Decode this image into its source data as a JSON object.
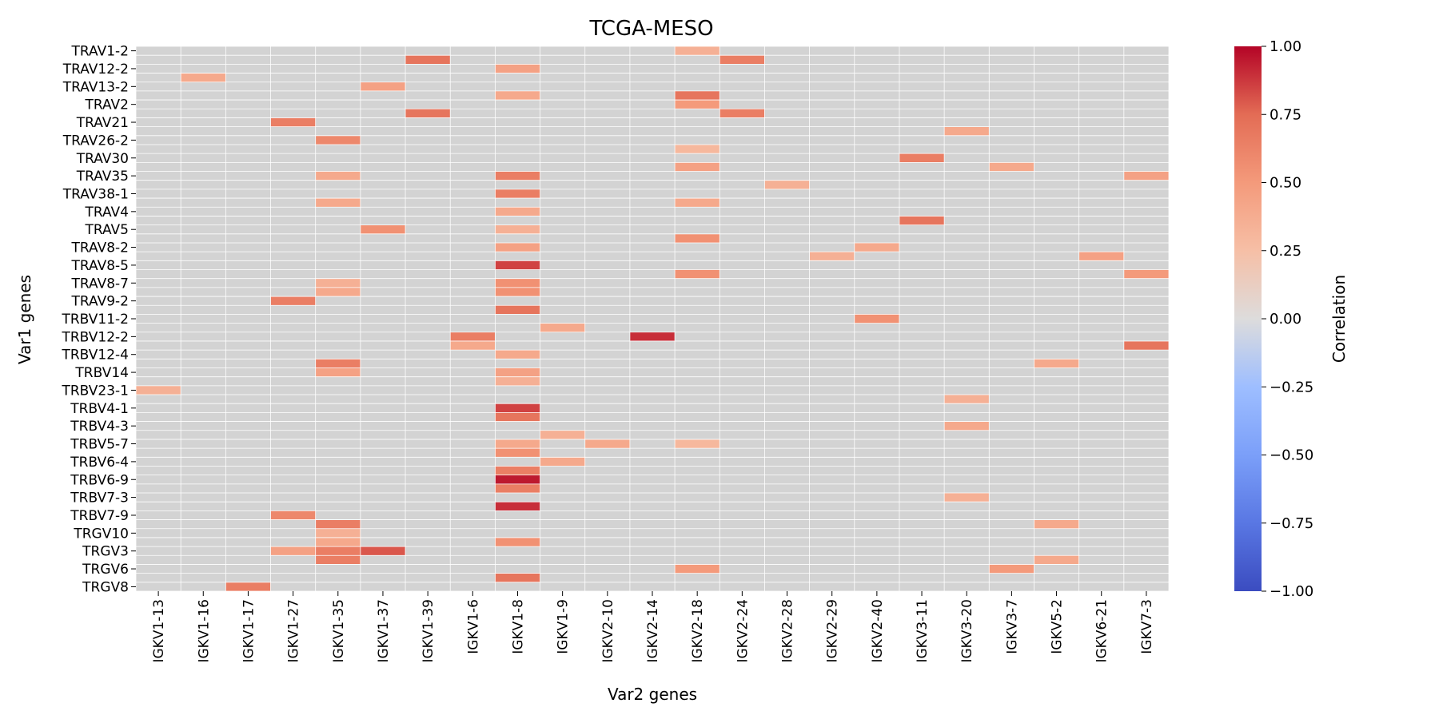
{
  "chart_data": {
    "type": "heatmap",
    "title": "TCGA-MESO",
    "xlabel": "Var2 genes",
    "ylabel": "Var1 genes",
    "x_categories": [
      "IGKV1-13",
      "IGKV1-16",
      "IGKV1-17",
      "IGKV1-27",
      "IGKV1-35",
      "IGKV1-37",
      "IGKV1-39",
      "IGKV1-6",
      "IGKV1-8",
      "IGKV1-9",
      "IGKV2-10",
      "IGKV2-14",
      "IGKV2-18",
      "IGKV2-24",
      "IGKV2-28",
      "IGKV2-29",
      "IGKV2-40",
      "IGKV3-11",
      "IGKV3-20",
      "IGKV3-7",
      "IGKV5-2",
      "IGKV6-21",
      "IGKV7-3"
    ],
    "y_tick_labels": [
      "TRAV1-2",
      "TRAV12-2",
      "TRAV13-2",
      "TRAV2",
      "TRAV21",
      "TRAV26-2",
      "TRAV30",
      "TRAV35",
      "TRAV38-1",
      "TRAV4",
      "TRAV5",
      "TRAV8-2",
      "TRAV8-5",
      "TRAV8-7",
      "TRAV9-2",
      "TRBV11-2",
      "TRBV12-2",
      "TRBV12-4",
      "TRBV14",
      "TRBV23-1",
      "TRBV4-1",
      "TRBV4-3",
      "TRBV5-7",
      "TRBV6-4",
      "TRBV6-9",
      "TRBV7-3",
      "TRBV7-9",
      "TRGV10",
      "TRGV3",
      "TRGV6",
      "TRGV8"
    ],
    "row_count": 61,
    "missing_color": "#d3d3d3",
    "colormap": "coolwarm",
    "cells": [
      {
        "row": 0,
        "col": 12,
        "value": 0.35
      },
      {
        "row": 1,
        "col": 6,
        "value": 0.7
      },
      {
        "row": 1,
        "col": 13,
        "value": 0.65
      },
      {
        "row": 2,
        "col": 8,
        "value": 0.45
      },
      {
        "row": 3,
        "col": 1,
        "value": 0.4
      },
      {
        "row": 4,
        "col": 5,
        "value": 0.45
      },
      {
        "row": 5,
        "col": 8,
        "value": 0.4
      },
      {
        "row": 5,
        "col": 12,
        "value": 0.7
      },
      {
        "row": 6,
        "col": 12,
        "value": 0.5
      },
      {
        "row": 7,
        "col": 6,
        "value": 0.7
      },
      {
        "row": 7,
        "col": 13,
        "value": 0.65
      },
      {
        "row": 8,
        "col": 3,
        "value": 0.65
      },
      {
        "row": 9,
        "col": 18,
        "value": 0.4
      },
      {
        "row": 10,
        "col": 4,
        "value": 0.6
      },
      {
        "row": 11,
        "col": 12,
        "value": 0.3
      },
      {
        "row": 12,
        "col": 17,
        "value": 0.65
      },
      {
        "row": 13,
        "col": 12,
        "value": 0.45
      },
      {
        "row": 13,
        "col": 19,
        "value": 0.4
      },
      {
        "row": 14,
        "col": 4,
        "value": 0.4
      },
      {
        "row": 14,
        "col": 8,
        "value": 0.65
      },
      {
        "row": 14,
        "col": 22,
        "value": 0.45
      },
      {
        "row": 15,
        "col": 14,
        "value": 0.35
      },
      {
        "row": 16,
        "col": 8,
        "value": 0.65
      },
      {
        "row": 17,
        "col": 4,
        "value": 0.4
      },
      {
        "row": 17,
        "col": 12,
        "value": 0.4
      },
      {
        "row": 18,
        "col": 8,
        "value": 0.4
      },
      {
        "row": 19,
        "col": 17,
        "value": 0.7
      },
      {
        "row": 20,
        "col": 5,
        "value": 0.55
      },
      {
        "row": 20,
        "col": 8,
        "value": 0.35
      },
      {
        "row": 21,
        "col": 12,
        "value": 0.55
      },
      {
        "row": 22,
        "col": 8,
        "value": 0.45
      },
      {
        "row": 22,
        "col": 16,
        "value": 0.4
      },
      {
        "row": 23,
        "col": 15,
        "value": 0.35
      },
      {
        "row": 23,
        "col": 21,
        "value": 0.45
      },
      {
        "row": 24,
        "col": 8,
        "value": 0.85
      },
      {
        "row": 25,
        "col": 12,
        "value": 0.55
      },
      {
        "row": 25,
        "col": 22,
        "value": 0.5
      },
      {
        "row": 26,
        "col": 4,
        "value": 0.35
      },
      {
        "row": 26,
        "col": 8,
        "value": 0.55
      },
      {
        "row": 27,
        "col": 4,
        "value": 0.4
      },
      {
        "row": 27,
        "col": 8,
        "value": 0.55
      },
      {
        "row": 28,
        "col": 3,
        "value": 0.65
      },
      {
        "row": 29,
        "col": 8,
        "value": 0.7
      },
      {
        "row": 30,
        "col": 16,
        "value": 0.55
      },
      {
        "row": 31,
        "col": 9,
        "value": 0.4
      },
      {
        "row": 32,
        "col": 7,
        "value": 0.65
      },
      {
        "row": 32,
        "col": 11,
        "value": 0.9
      },
      {
        "row": 33,
        "col": 7,
        "value": 0.4
      },
      {
        "row": 33,
        "col": 22,
        "value": 0.7
      },
      {
        "row": 34,
        "col": 8,
        "value": 0.4
      },
      {
        "row": 35,
        "col": 4,
        "value": 0.65
      },
      {
        "row": 35,
        "col": 20,
        "value": 0.4
      },
      {
        "row": 36,
        "col": 4,
        "value": 0.45
      },
      {
        "row": 36,
        "col": 8,
        "value": 0.45
      },
      {
        "row": 37,
        "col": 8,
        "value": 0.35
      },
      {
        "row": 38,
        "col": 0,
        "value": 0.35
      },
      {
        "row": 39,
        "col": 18,
        "value": 0.35
      },
      {
        "row": 40,
        "col": 8,
        "value": 0.85
      },
      {
        "row": 41,
        "col": 8,
        "value": 0.7
      },
      {
        "row": 42,
        "col": 18,
        "value": 0.4
      },
      {
        "row": 43,
        "col": 9,
        "value": 0.35
      },
      {
        "row": 44,
        "col": 8,
        "value": 0.4
      },
      {
        "row": 44,
        "col": 10,
        "value": 0.4
      },
      {
        "row": 44,
        "col": 12,
        "value": 0.3
      },
      {
        "row": 45,
        "col": 8,
        "value": 0.55
      },
      {
        "row": 46,
        "col": 9,
        "value": 0.4
      },
      {
        "row": 47,
        "col": 8,
        "value": 0.65
      },
      {
        "row": 48,
        "col": 8,
        "value": 0.95
      },
      {
        "row": 49,
        "col": 8,
        "value": 0.65
      },
      {
        "row": 50,
        "col": 18,
        "value": 0.35
      },
      {
        "row": 51,
        "col": 8,
        "value": 0.9
      },
      {
        "row": 52,
        "col": 3,
        "value": 0.6
      },
      {
        "row": 53,
        "col": 4,
        "value": 0.65
      },
      {
        "row": 53,
        "col": 20,
        "value": 0.4
      },
      {
        "row": 54,
        "col": 4,
        "value": 0.35
      },
      {
        "row": 55,
        "col": 4,
        "value": 0.4
      },
      {
        "row": 55,
        "col": 8,
        "value": 0.55
      },
      {
        "row": 56,
        "col": 3,
        "value": 0.45
      },
      {
        "row": 56,
        "col": 4,
        "value": 0.65
      },
      {
        "row": 56,
        "col": 5,
        "value": 0.8
      },
      {
        "row": 57,
        "col": 4,
        "value": 0.65
      },
      {
        "row": 57,
        "col": 20,
        "value": 0.4
      },
      {
        "row": 58,
        "col": 12,
        "value": 0.5
      },
      {
        "row": 58,
        "col": 19,
        "value": 0.5
      },
      {
        "row": 59,
        "col": 8,
        "value": 0.7
      },
      {
        "row": 60,
        "col": 2,
        "value": 0.65
      }
    ],
    "colorbar": {
      "label": "Correlation",
      "range": [
        -1,
        1
      ],
      "ticks": [
        1.0,
        0.75,
        0.5,
        0.25,
        0.0,
        -0.25,
        -0.5,
        -0.75,
        -1.0
      ],
      "tick_labels": [
        "1.00",
        "0.75",
        "0.50",
        "0.25",
        "0.00",
        "−0.25",
        "−0.50",
        "−0.75",
        "−1.00"
      ]
    }
  }
}
